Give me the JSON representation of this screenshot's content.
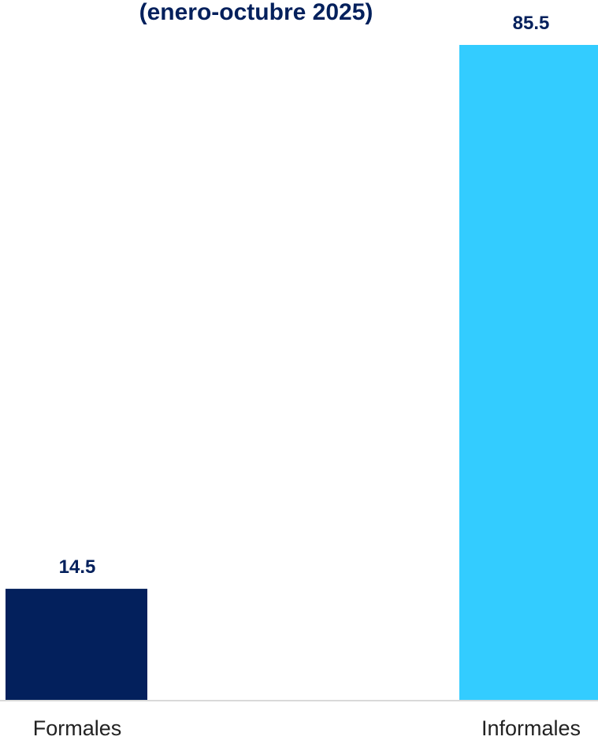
{
  "chart_data": {
    "type": "bar",
    "title": "(enero-octubre 2025)",
    "categories": [
      "Formales",
      "Informales"
    ],
    "values": [
      14.5,
      85.5
    ],
    "data_labels": [
      "14.5",
      "85.5"
    ],
    "colors": [
      "#03205C",
      "#33CCFF"
    ],
    "ylim": [
      0,
      85.5
    ],
    "grid": false,
    "legend": "none",
    "text_color": "#03205C",
    "axis_color": "#D9D9D9"
  }
}
